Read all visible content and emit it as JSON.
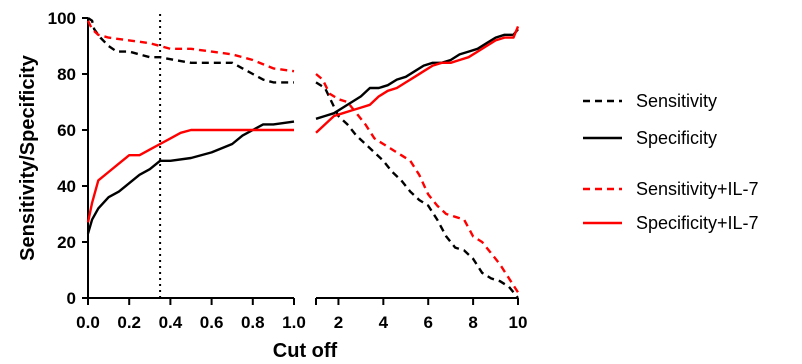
{
  "chart_data": {
    "type": "line",
    "title": "",
    "xlabel": "Cut off",
    "ylabel": "Sensitivity/Specificity",
    "ylim": [
      0,
      100
    ],
    "yticks": [
      0,
      20,
      40,
      60,
      80,
      100
    ],
    "grid": false,
    "legend_position": "right",
    "reference_line_x": 0.35,
    "panels": [
      {
        "xlim": [
          0,
          1.0
        ],
        "xticks": [
          0.0,
          0.2,
          0.4,
          0.6,
          0.8,
          1.0
        ],
        "xtick_labels": [
          "0.0",
          "0.2",
          "0.4",
          "0.6",
          "0.8",
          "1.0"
        ]
      },
      {
        "xlim": [
          1,
          10
        ],
        "xticks": [
          2,
          4,
          6,
          8,
          10
        ],
        "xtick_labels": [
          "2",
          "4",
          "6",
          "8",
          "10"
        ]
      }
    ],
    "series": [
      {
        "name": "Sensitivity",
        "color": "#000000",
        "dashed": true,
        "panel1": [
          [
            0,
            100
          ],
          [
            0.02,
            99
          ],
          [
            0.03,
            96
          ],
          [
            0.06,
            93
          ],
          [
            0.1,
            90
          ],
          [
            0.14,
            88
          ],
          [
            0.2,
            88
          ],
          [
            0.25,
            87
          ],
          [
            0.3,
            86
          ],
          [
            0.35,
            86
          ],
          [
            0.42,
            85
          ],
          [
            0.5,
            84
          ],
          [
            0.6,
            84
          ],
          [
            0.7,
            84
          ],
          [
            0.75,
            82
          ],
          [
            0.8,
            80
          ],
          [
            0.85,
            78
          ],
          [
            0.9,
            77
          ],
          [
            1.0,
            77
          ]
        ],
        "panel2": [
          [
            1,
            77
          ],
          [
            1.4,
            75
          ],
          [
            1.7,
            70
          ],
          [
            2,
            65
          ],
          [
            2.4,
            62
          ],
          [
            2.8,
            58
          ],
          [
            3.2,
            55
          ],
          [
            3.6,
            52
          ],
          [
            4,
            49
          ],
          [
            4.4,
            45
          ],
          [
            4.8,
            42
          ],
          [
            5.2,
            38
          ],
          [
            5.6,
            35
          ],
          [
            6,
            33
          ],
          [
            6.4,
            28
          ],
          [
            6.8,
            22
          ],
          [
            7.2,
            18
          ],
          [
            7.6,
            17
          ],
          [
            8,
            14
          ],
          [
            8.4,
            9
          ],
          [
            8.8,
            7
          ],
          [
            9.2,
            6
          ],
          [
            9.6,
            4
          ],
          [
            10,
            0
          ]
        ]
      },
      {
        "name": "Specificity",
        "color": "#000000",
        "dashed": false,
        "panel1": [
          [
            0,
            23
          ],
          [
            0.02,
            28
          ],
          [
            0.05,
            32
          ],
          [
            0.1,
            36
          ],
          [
            0.15,
            38
          ],
          [
            0.2,
            41
          ],
          [
            0.25,
            44
          ],
          [
            0.3,
            46
          ],
          [
            0.35,
            49
          ],
          [
            0.4,
            49
          ],
          [
            0.5,
            50
          ],
          [
            0.6,
            52
          ],
          [
            0.7,
            55
          ],
          [
            0.75,
            58
          ],
          [
            0.8,
            60
          ],
          [
            0.85,
            62
          ],
          [
            0.9,
            62
          ],
          [
            1.0,
            63
          ]
        ],
        "panel2": [
          [
            1,
            64
          ],
          [
            1.4,
            65
          ],
          [
            1.8,
            66
          ],
          [
            2.2,
            68
          ],
          [
            2.6,
            70
          ],
          [
            3,
            72
          ],
          [
            3.4,
            75
          ],
          [
            3.8,
            75
          ],
          [
            4.2,
            76
          ],
          [
            4.6,
            78
          ],
          [
            5,
            79
          ],
          [
            5.4,
            81
          ],
          [
            5.8,
            83
          ],
          [
            6.2,
            84
          ],
          [
            6.6,
            84
          ],
          [
            7,
            85
          ],
          [
            7.4,
            87
          ],
          [
            7.8,
            88
          ],
          [
            8.2,
            89
          ],
          [
            8.6,
            91
          ],
          [
            9,
            93
          ],
          [
            9.4,
            94
          ],
          [
            9.8,
            94
          ],
          [
            10,
            96
          ]
        ]
      },
      {
        "name": "Sensitivity+IL-7",
        "color": "#ff0000",
        "dashed": true,
        "panel1": [
          [
            0,
            99
          ],
          [
            0.02,
            96
          ],
          [
            0.05,
            94
          ],
          [
            0.1,
            93
          ],
          [
            0.2,
            92
          ],
          [
            0.3,
            91
          ],
          [
            0.35,
            90
          ],
          [
            0.4,
            89
          ],
          [
            0.5,
            89
          ],
          [
            0.6,
            88
          ],
          [
            0.7,
            87
          ],
          [
            0.8,
            85
          ],
          [
            0.9,
            82
          ],
          [
            1.0,
            81
          ]
        ],
        "panel2": [
          [
            1,
            80
          ],
          [
            1.3,
            78
          ],
          [
            1.6,
            73
          ],
          [
            2,
            71
          ],
          [
            2.4,
            70
          ],
          [
            2.8,
            66
          ],
          [
            3.2,
            62
          ],
          [
            3.6,
            57
          ],
          [
            4,
            55
          ],
          [
            4.4,
            53
          ],
          [
            4.8,
            51
          ],
          [
            5.2,
            49
          ],
          [
            5.6,
            44
          ],
          [
            6,
            37
          ],
          [
            6.4,
            33
          ],
          [
            6.8,
            30
          ],
          [
            7.2,
            29
          ],
          [
            7.6,
            28
          ],
          [
            8,
            22
          ],
          [
            8.4,
            20
          ],
          [
            8.8,
            16
          ],
          [
            9.2,
            12
          ],
          [
            9.6,
            7
          ],
          [
            10,
            2
          ]
        ]
      },
      {
        "name": "Specificity+IL-7",
        "color": "#ff0000",
        "dashed": false,
        "panel1": [
          [
            0,
            27
          ],
          [
            0.02,
            34
          ],
          [
            0.05,
            42
          ],
          [
            0.1,
            45
          ],
          [
            0.15,
            48
          ],
          [
            0.2,
            51
          ],
          [
            0.25,
            51
          ],
          [
            0.3,
            53
          ],
          [
            0.35,
            55
          ],
          [
            0.4,
            57
          ],
          [
            0.45,
            59
          ],
          [
            0.5,
            60
          ],
          [
            0.6,
            60
          ],
          [
            0.7,
            60
          ],
          [
            0.8,
            60
          ],
          [
            0.9,
            60
          ],
          [
            1.0,
            60
          ]
        ],
        "panel2": [
          [
            1,
            59
          ],
          [
            1.4,
            62
          ],
          [
            1.8,
            65
          ],
          [
            2.2,
            66
          ],
          [
            2.6,
            67
          ],
          [
            3,
            68
          ],
          [
            3.4,
            69
          ],
          [
            3.8,
            72
          ],
          [
            4.2,
            74
          ],
          [
            4.6,
            75
          ],
          [
            5,
            77
          ],
          [
            5.4,
            79
          ],
          [
            5.8,
            81
          ],
          [
            6.2,
            83
          ],
          [
            6.6,
            84
          ],
          [
            7,
            84
          ],
          [
            7.4,
            85
          ],
          [
            7.8,
            86
          ],
          [
            8.2,
            88
          ],
          [
            8.6,
            90
          ],
          [
            9,
            92
          ],
          [
            9.4,
            93
          ],
          [
            9.8,
            93
          ],
          [
            10,
            97
          ]
        ]
      }
    ]
  }
}
